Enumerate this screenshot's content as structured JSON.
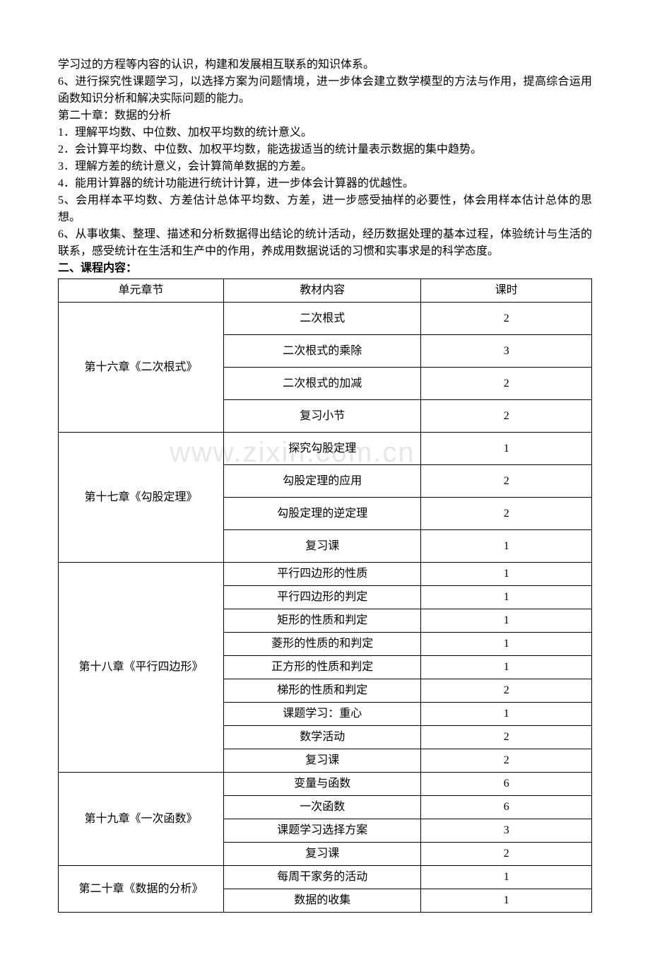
{
  "intro": {
    "line1": "学习过的方程等内容的认识，构建和发展相互联系的知识体系。",
    "line2": "6、进行探究性课题学习，以选择方案为问题情境，进一步体会建立数学模型的方法与作用，提高综合运用函数知识分析和解决实际问题的能力。",
    "chapter20_title": "第二十章：数据的分析",
    "c20_1": "1．理解平均数、中位数、加权平均数的统计意义。",
    "c20_2": "2．会计算平均数、中位数、加权平均数，能选拔适当的统计量表示数据的集中趋势。",
    "c20_3": "3．理解方差的统计意义，会计算简单数据的方差。",
    "c20_4": "4．能用计算器的统计功能进行统计计算，进一步体会计算器的优越性。",
    "c20_5": "5、会用样本平均数、方差估计总体平均数、方差，进一步感受抽样的必要性，体会用样本估计总体的思想。",
    "c20_6": "6、从事收集、整理、描述和分析数据得出结论的统计活动，经历数据处理的基本过程，体验统计与生活的联系，感受统计在生活和生产中的作用，养成用数据说话的习惯和实事求是的科学态度。"
  },
  "section2_title": "二、课程内容：",
  "watermark": "www.zixin.com.cn",
  "table": {
    "headers": {
      "col1": "单元章节",
      "col2": "教材内容",
      "col3": "课时"
    },
    "chapters": [
      {
        "name": "第十六章《二次根式》",
        "tall": true,
        "rows": [
          {
            "content": "二次根式",
            "hours": "2"
          },
          {
            "content": "二次根式的乘除",
            "hours": "3"
          },
          {
            "content": "二次根式的加减",
            "hours": "2"
          },
          {
            "content": "复习小节",
            "hours": "2"
          }
        ]
      },
      {
        "name": "第十七章《勾股定理》",
        "tall": true,
        "rows": [
          {
            "content": "探究勾股定理",
            "hours": "1"
          },
          {
            "content": "勾股定理的应用",
            "hours": "2"
          },
          {
            "content": "勾股定理的逆定理",
            "hours": "2"
          },
          {
            "content": "复习课",
            "hours": "1"
          }
        ]
      },
      {
        "name": "第十八章《平行四边形》",
        "tall": false,
        "rows": [
          {
            "content": "平行四边形的性质",
            "hours": "1"
          },
          {
            "content": "平行四边形的判定",
            "hours": "1"
          },
          {
            "content": "矩形的性质和判定",
            "hours": "1"
          },
          {
            "content": "菱形的性质的和判定",
            "hours": "1"
          },
          {
            "content": "正方形的性质和判定",
            "hours": "1"
          },
          {
            "content": "梯形的性质和判定",
            "hours": "2"
          },
          {
            "content": "课题学习：重心",
            "hours": "1"
          },
          {
            "content": "数学活动",
            "hours": "2"
          },
          {
            "content": "复习课",
            "hours": "2"
          }
        ]
      },
      {
        "name": "第十九章《一次函数》",
        "tall": false,
        "rows": [
          {
            "content": "变量与函数",
            "hours": "6"
          },
          {
            "content": "一次函数",
            "hours": "6"
          },
          {
            "content": "课题学习选择方案",
            "hours": "3"
          },
          {
            "content": "复习课",
            "hours": "2"
          }
        ]
      },
      {
        "name": "第二十章《数据的分析》",
        "tall": false,
        "rows": [
          {
            "content": "每周干家务的活动",
            "hours": "1"
          },
          {
            "content": "数据的收集",
            "hours": "1"
          }
        ]
      }
    ],
    "col_widths": {
      "col1": "31%",
      "col2": "37%",
      "col3": "32%"
    }
  }
}
